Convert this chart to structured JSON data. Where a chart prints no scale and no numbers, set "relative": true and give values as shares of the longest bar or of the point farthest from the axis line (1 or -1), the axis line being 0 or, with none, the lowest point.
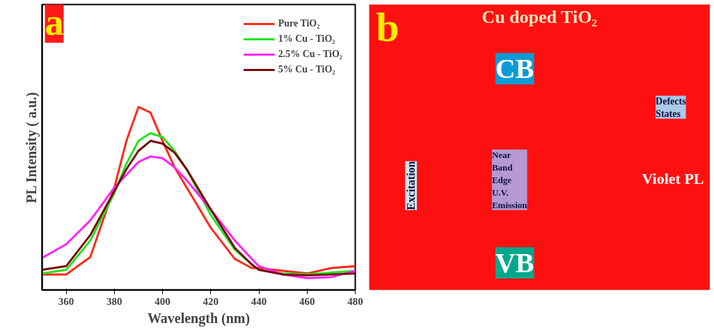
{
  "chart_data": [
    {
      "type": "line",
      "relative": true,
      "xlabel": "Wavelength (nm)",
      "ylabel": "PL Intensity ( a.u.)",
      "annotations": [
        "a"
      ],
      "x": [
        350,
        360,
        370,
        380,
        385,
        390,
        395,
        400,
        405,
        410,
        420,
        430,
        437,
        440,
        450,
        460,
        470,
        480
      ],
      "xlim": [
        350,
        480
      ],
      "xticks": [
        360,
        380,
        400,
        420,
        440,
        460,
        480
      ],
      "legend": "top right",
      "grid": false,
      "marker": "none",
      "line_style": "solid",
      "series": [
        {
          "name": "Pure TiO₂",
          "color": "#ff2a1a",
          "values": [
            0.085,
            0.085,
            0.18,
            0.56,
            0.815,
            1,
            0.97,
            0.815,
            0.67,
            0.56,
            0.34,
            0.17,
            0.12,
            0.12,
            0.105,
            0.09,
            0.12,
            0.13
          ]
        },
        {
          "name": "1% Cu - TiO₂",
          "color": "#1ee61e",
          "values": [
            0.09,
            0.11,
            0.27,
            0.53,
            0.69,
            0.815,
            0.857,
            0.835,
            0.76,
            0.66,
            0.41,
            0.22,
            0.14,
            0.11,
            0.09,
            0.085,
            0.095,
            0.105
          ]
        },
        {
          "name": "2.5% Cu - TiO₂",
          "color": "#ff22ff",
          "values": [
            0.175,
            0.25,
            0.38,
            0.56,
            0.63,
            0.7,
            0.73,
            0.72,
            0.67,
            0.6,
            0.44,
            0.27,
            0.17,
            0.13,
            0.085,
            0.065,
            0.07,
            0.105
          ]
        },
        {
          "name": "5% Cu - TiO₂",
          "color": "#7a0a0a",
          "values": [
            0.11,
            0.13,
            0.3,
            0.54,
            0.66,
            0.76,
            0.815,
            0.8,
            0.75,
            0.66,
            0.44,
            0.23,
            0.14,
            0.11,
            0.085,
            0.08,
            0.085,
            0.09
          ]
        }
      ]
    },
    {
      "type": "other",
      "title": "Cu doped TiO₂",
      "annotations": [
        "b",
        "CB",
        "VB",
        "Defects States",
        "Excitation",
        "Near Band Edge U.V. Emission",
        "Violet PL"
      ]
    }
  ]
}
